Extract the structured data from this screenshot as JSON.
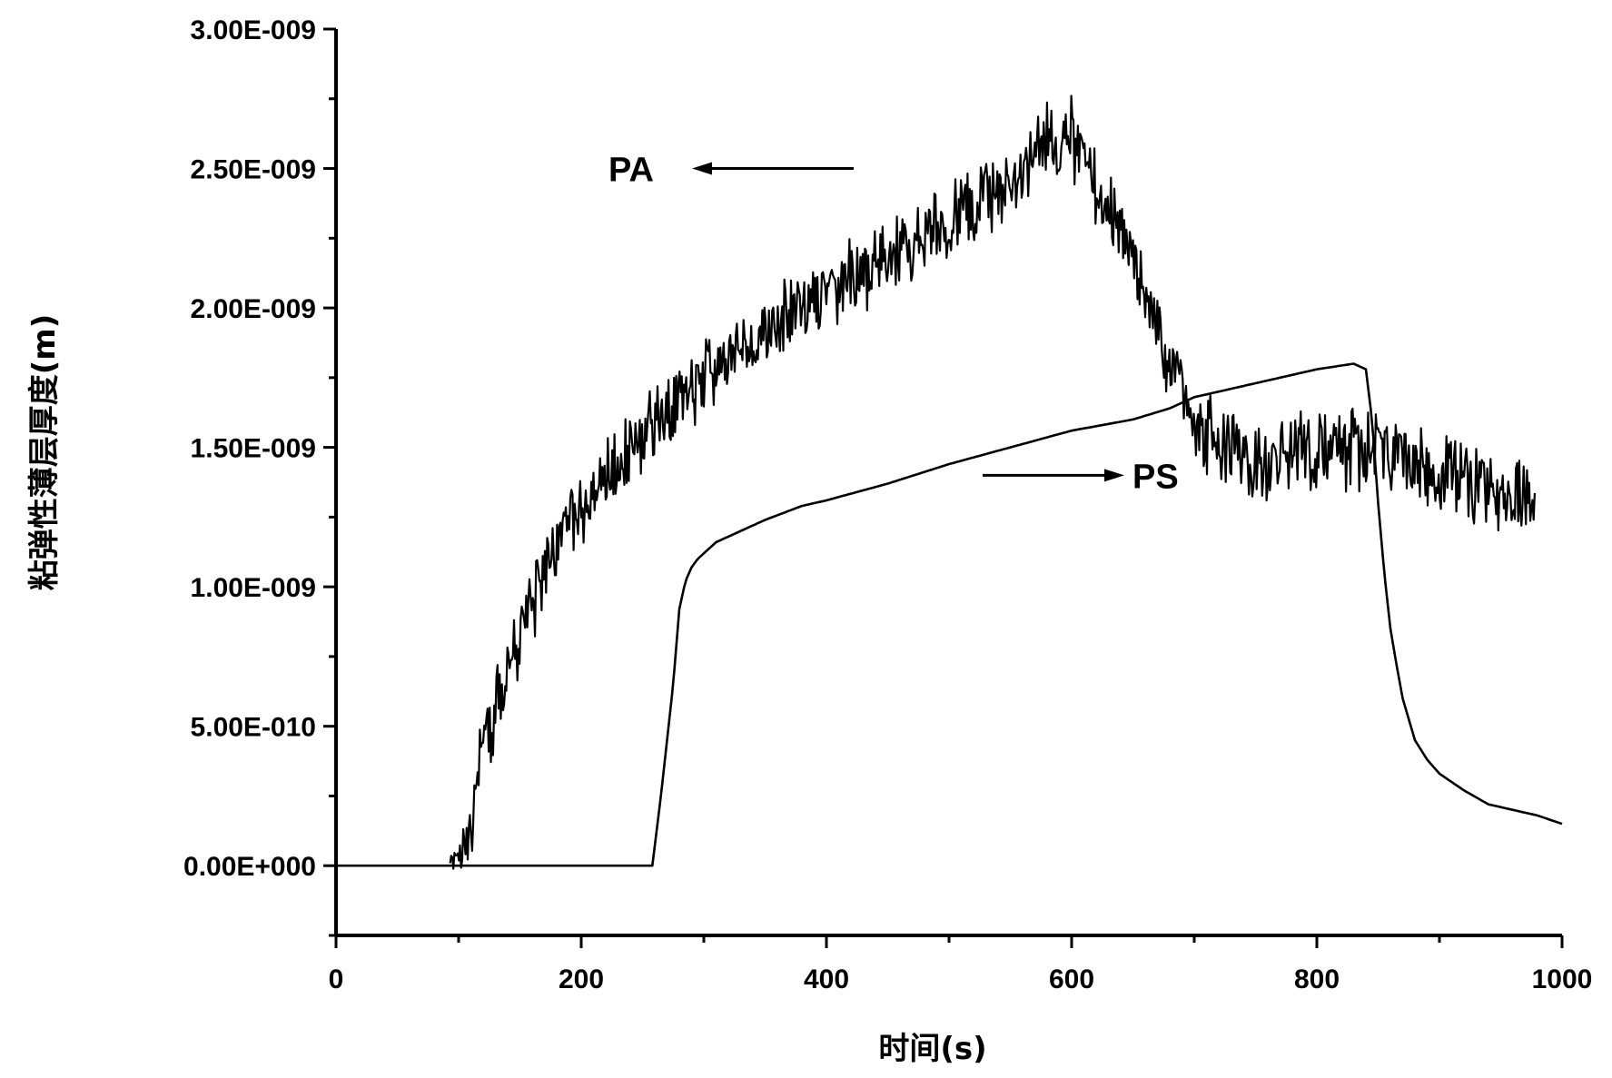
{
  "chart_data": {
    "type": "line",
    "xlabel": "时间(s)",
    "ylabel": "粘弹性薄层厚度(m)",
    "xlim": [
      0,
      1000
    ],
    "ylim": [
      -2.5e-10,
      3e-09
    ],
    "x_ticks": [
      0,
      200,
      400,
      600,
      800,
      1000
    ],
    "x_tick_labels": [
      "0",
      "200",
      "400",
      "600",
      "800",
      "1000"
    ],
    "y_ticks": [
      0,
      5e-10,
      1e-09,
      1.5e-09,
      2e-09,
      2.5e-09,
      3e-09
    ],
    "y_tick_labels": [
      "0.00E+000",
      "5.00E-010",
      "1.00E-009",
      "1.50E-009",
      "2.00E-009",
      "2.50E-009",
      "3.00E-009"
    ],
    "grid": false,
    "annotations": [
      {
        "text": "PA",
        "arrow": "left",
        "x": 400,
        "y": 2.5e-09
      },
      {
        "text": "PS",
        "arrow": "right",
        "x": 520,
        "y": 1.4e-09
      }
    ],
    "series": [
      {
        "name": "PA",
        "noisy": true,
        "noise_amplitude": 1.2e-10,
        "start_x": 93,
        "end_x": 978,
        "x": [
          93,
          110,
          115,
          130,
          150,
          180,
          200,
          250,
          300,
          350,
          400,
          450,
          500,
          550,
          580,
          600,
          620,
          650,
          680,
          700,
          720,
          750,
          800,
          850,
          900,
          950,
          978
        ],
        "y": [
          0.0,
          1e-10,
          3.5e-10,
          5.5e-10,
          8.5e-10,
          1.15e-09,
          1.28e-09,
          1.55e-09,
          1.75e-09,
          1.92e-09,
          2.05e-09,
          2.18e-09,
          2.32e-09,
          2.45e-09,
          2.58e-09,
          2.62e-09,
          2.45e-09,
          2.15e-09,
          1.8e-09,
          1.6e-09,
          1.5e-09,
          1.45e-09,
          1.5e-09,
          1.5e-09,
          1.4e-09,
          1.35e-09,
          1.3e-09
        ]
      },
      {
        "name": "PS",
        "noisy": false,
        "x": [
          0,
          258,
          265,
          270,
          275,
          280,
          285,
          290,
          295,
          300,
          310,
          330,
          350,
          380,
          400,
          450,
          500,
          550,
          600,
          650,
          680,
          700,
          750,
          800,
          830,
          840,
          845,
          850,
          855,
          860,
          865,
          870,
          880,
          890,
          900,
          920,
          940,
          960,
          980,
          1000
        ],
        "y": [
          0.0,
          0.0,
          2.5e-10,
          4.5e-10,
          6.5e-10,
          9.2e-10,
          1.02e-09,
          1.07e-09,
          1.1e-09,
          1.12e-09,
          1.16e-09,
          1.2e-09,
          1.24e-09,
          1.29e-09,
          1.31e-09,
          1.37e-09,
          1.44e-09,
          1.5e-09,
          1.56e-09,
          1.6e-09,
          1.64e-09,
          1.68e-09,
          1.73e-09,
          1.78e-09,
          1.8e-09,
          1.78e-09,
          1.6e-09,
          1.3e-09,
          1.05e-09,
          8.5e-10,
          7.2e-10,
          6e-10,
          4.5e-10,
          3.8e-10,
          3.3e-10,
          2.7e-10,
          2.2e-10,
          2e-10,
          1.8e-10,
          1.5e-10
        ]
      }
    ]
  }
}
